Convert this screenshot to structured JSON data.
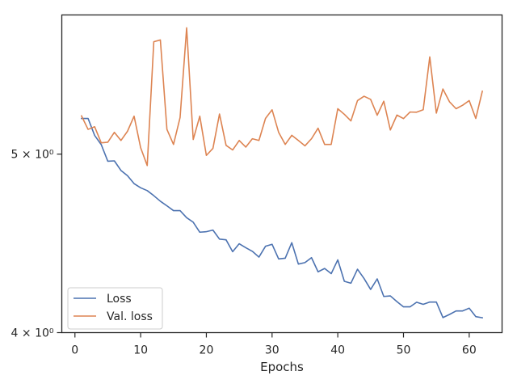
{
  "chart_data": {
    "type": "line",
    "xlabel": "Epochs",
    "ylabel": "",
    "xlim": [
      -2,
      65
    ],
    "ylim": [
      4.0,
      5.95
    ],
    "yscale": "log",
    "grid": false,
    "legend_position": "lower-left",
    "x_ticks": [
      {
        "value": 0,
        "label": "0"
      },
      {
        "value": 10,
        "label": "10"
      },
      {
        "value": 20,
        "label": "20"
      },
      {
        "value": 30,
        "label": "30"
      },
      {
        "value": 40,
        "label": "40"
      },
      {
        "value": 50,
        "label": "50"
      },
      {
        "value": 60,
        "label": "60"
      }
    ],
    "y_ticks": [
      {
        "value": 4.0,
        "label": "4 × 10⁰"
      },
      {
        "value": 5.0,
        "label": "5 × 10⁰"
      }
    ],
    "x": [
      1,
      2,
      3,
      4,
      5,
      6,
      7,
      8,
      9,
      10,
      11,
      12,
      13,
      14,
      15,
      16,
      17,
      18,
      19,
      20,
      21,
      22,
      23,
      24,
      25,
      26,
      27,
      28,
      29,
      30,
      31,
      32,
      33,
      34,
      35,
      36,
      37,
      38,
      39,
      40,
      41,
      42,
      43,
      44,
      45,
      46,
      47,
      48,
      49,
      50,
      51,
      52,
      53,
      54,
      55,
      56,
      57,
      58,
      59,
      60,
      61,
      62
    ],
    "series": [
      {
        "name": "Loss",
        "color": "#4c72b0",
        "values": [
          5.228,
          5.228,
          5.118,
          5.06,
          4.956,
          4.958,
          4.899,
          4.867,
          4.819,
          4.794,
          4.777,
          4.747,
          4.714,
          4.687,
          4.659,
          4.659,
          4.618,
          4.592,
          4.535,
          4.538,
          4.547,
          4.496,
          4.492,
          4.426,
          4.47,
          4.448,
          4.428,
          4.396,
          4.456,
          4.467,
          4.386,
          4.39,
          4.476,
          4.358,
          4.366,
          4.393,
          4.316,
          4.334,
          4.306,
          4.381,
          4.265,
          4.255,
          4.33,
          4.28,
          4.222,
          4.278,
          4.185,
          4.188,
          4.158,
          4.131,
          4.131,
          4.155,
          4.144,
          4.156,
          4.156,
          4.076,
          4.092,
          4.11,
          4.11,
          4.124,
          4.081,
          4.075
        ]
      },
      {
        "name": "Val. loss",
        "color": "#dd8452",
        "values": [
          5.245,
          5.157,
          5.174,
          5.071,
          5.075,
          5.138,
          5.086,
          5.145,
          5.243,
          5.04,
          4.929,
          5.754,
          5.767,
          5.157,
          5.061,
          5.234,
          5.855,
          5.092,
          5.243,
          4.992,
          5.036,
          5.257,
          5.055,
          5.026,
          5.086,
          5.044,
          5.097,
          5.086,
          5.228,
          5.285,
          5.138,
          5.061,
          5.119,
          5.086,
          5.052,
          5.097,
          5.165,
          5.061,
          5.061,
          5.292,
          5.255,
          5.212,
          5.346,
          5.375,
          5.354,
          5.249,
          5.342,
          5.153,
          5.25,
          5.227,
          5.27,
          5.269,
          5.285,
          5.646,
          5.263,
          5.424,
          5.338,
          5.292,
          5.315,
          5.346,
          5.228,
          5.409
        ]
      }
    ]
  }
}
